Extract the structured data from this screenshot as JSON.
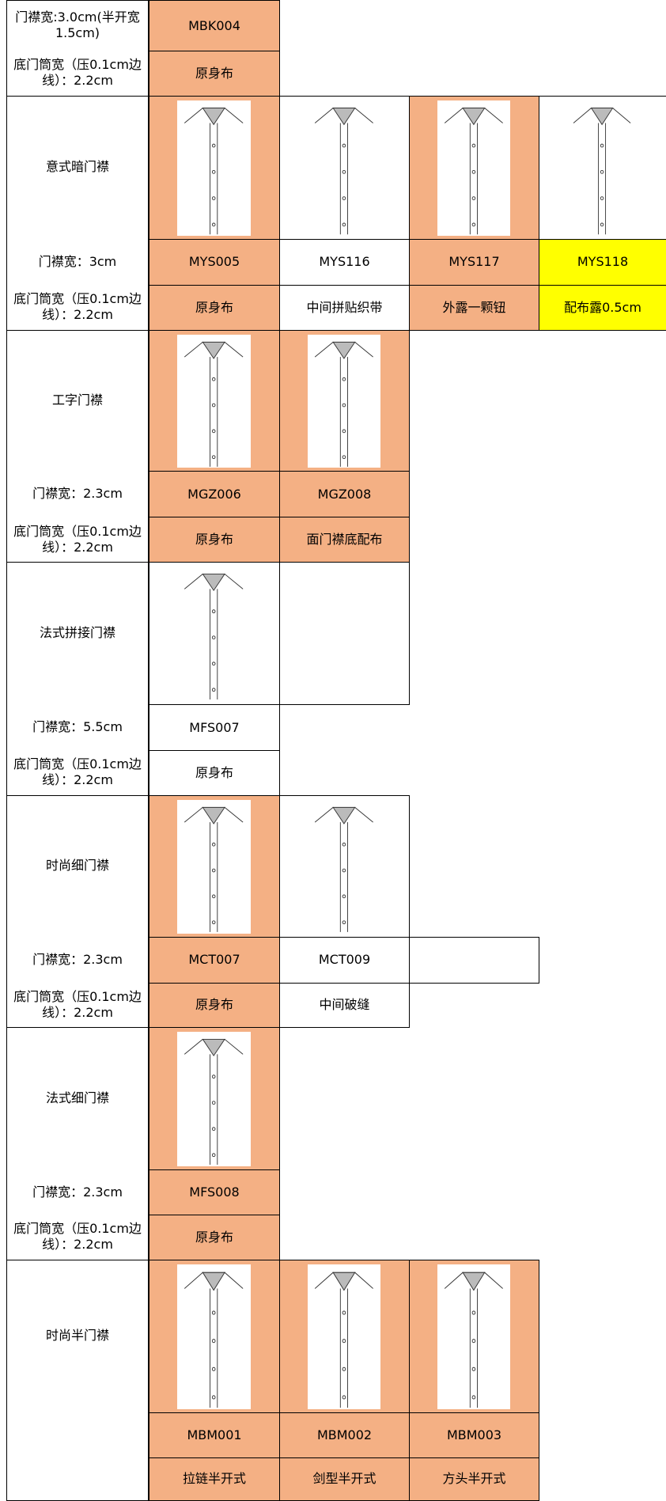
{
  "sections": [
    {
      "label": null,
      "width": "门襟宽:3.0cm(半开宽1.5cm)",
      "bottom": "底门筒宽（压0.1cm边线）：2.2cm",
      "items": [
        {
          "code": "MBK004",
          "desc": "原身布",
          "color": "#f4b084",
          "image_color": null
        }
      ]
    },
    {
      "label": "意式暗门襟",
      "width": "门襟宽：3cm",
      "bottom": "底门筒宽（压0.1cm边线）：2.2cm",
      "items": [
        {
          "code": "MYS005",
          "desc": "原身布",
          "color": "#f4b084",
          "image_color": "#f4b084"
        },
        {
          "code": "MYS116",
          "desc": "中间拼贴织带",
          "color": "#ffffff",
          "image_color": "#ffffff"
        },
        {
          "code": "MYS117",
          "desc": "外露一颗钮",
          "color": "#f4b084",
          "image_color": "#f4b084"
        },
        {
          "code": "MYS118",
          "desc": "配布露0.5cm",
          "color": "#ffff00",
          "image_color": "#ffffff"
        }
      ]
    },
    {
      "label": "工字门襟",
      "width": "门襟宽：2.3cm",
      "bottom": "底门筒宽（压0.1cm边线）：2.2cm",
      "items": [
        {
          "code": "MGZ006",
          "desc": "原身布",
          "color": "#f4b084",
          "image_color": "#f4b084"
        },
        {
          "code": "MGZ008",
          "desc": "面门襟底配布",
          "color": "#f4b084",
          "image_color": "#f4b084"
        }
      ]
    },
    {
      "label": "法式拼接门襟",
      "width": "门襟宽：5.5cm",
      "bottom": "底门筒宽（压0.1cm边线）：2.2cm",
      "items": [
        {
          "code": "MFS007",
          "desc": "原身布",
          "color": "#ffffff",
          "image_color": "#ffffff"
        }
      ]
    },
    {
      "label": "时尚细门襟",
      "width": "门襟宽：2.3cm",
      "bottom": "底门筒宽（压0.1cm边线）：2.2cm",
      "items": [
        {
          "code": "MCT007",
          "desc": "原身布",
          "color": "#f4b084",
          "image_color": "#f4b084"
        },
        {
          "code": "MCT009",
          "desc": "中间破缝",
          "color": "#ffffff",
          "image_color": "#ffffff"
        }
      ]
    },
    {
      "label": "法式细门襟",
      "width": "门襟宽：2.3cm",
      "bottom": "底门筒宽（压0.1cm边线）：2.2cm",
      "items": [
        {
          "code": "MFS008",
          "desc": "原身布",
          "color": "#f4b084",
          "image_color": "#f4b084"
        }
      ]
    },
    {
      "label": "时尚半门襟",
      "width": null,
      "bottom": null,
      "items": [
        {
          "code": "MBM001",
          "desc": "拉链半开式",
          "color": "#f4b084",
          "image_color": "#f4b084"
        },
        {
          "code": "MBM002",
          "desc": "剑型半开式",
          "color": "#f4b084",
          "image_color": "#f4b084"
        },
        {
          "code": "MBM003",
          "desc": "方头半开式",
          "color": "#f4b084",
          "image_color": "#f4b084"
        }
      ]
    }
  ]
}
